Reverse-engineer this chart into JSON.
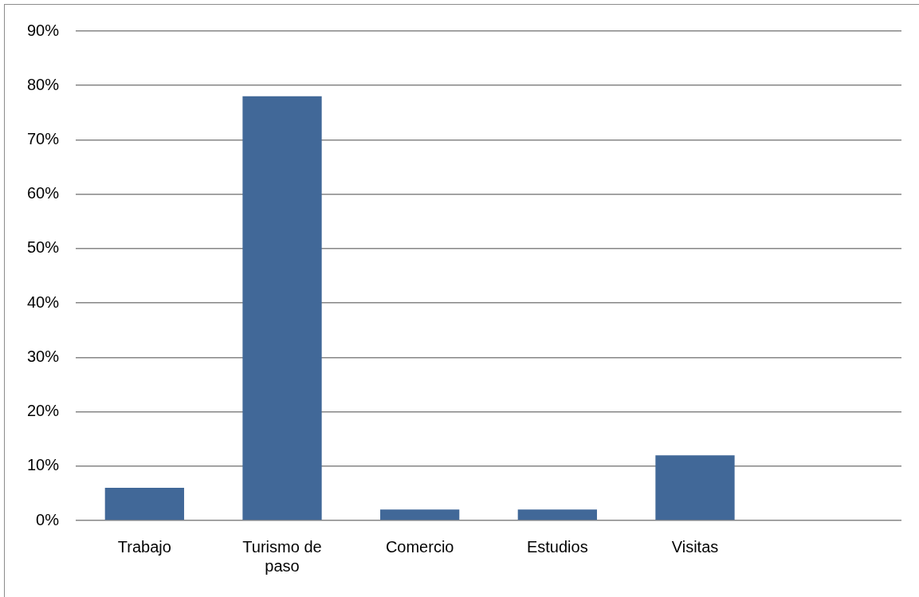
{
  "chart_data": {
    "type": "bar",
    "categories": [
      "Trabajo",
      "Turismo de paso",
      "Comercio",
      "Estudios",
      "Visitas",
      null
    ],
    "values": [
      6,
      78,
      2,
      2,
      12,
      null
    ],
    "color": "#416898",
    "ylim": [
      0,
      90
    ],
    "yticks": [
      {
        "value": 0,
        "label": "0%"
      },
      {
        "value": 10,
        "label": "10%"
      },
      {
        "value": 20,
        "label": "20%"
      },
      {
        "value": 30,
        "label": "30%"
      },
      {
        "value": 40,
        "label": "40%"
      },
      {
        "value": 50,
        "label": "50%"
      },
      {
        "value": 60,
        "label": "60%"
      },
      {
        "value": 70,
        "label": "70%"
      },
      {
        "value": 80,
        "label": "80%"
      },
      {
        "value": 90,
        "label": "90%"
      }
    ],
    "grid": "y"
  }
}
